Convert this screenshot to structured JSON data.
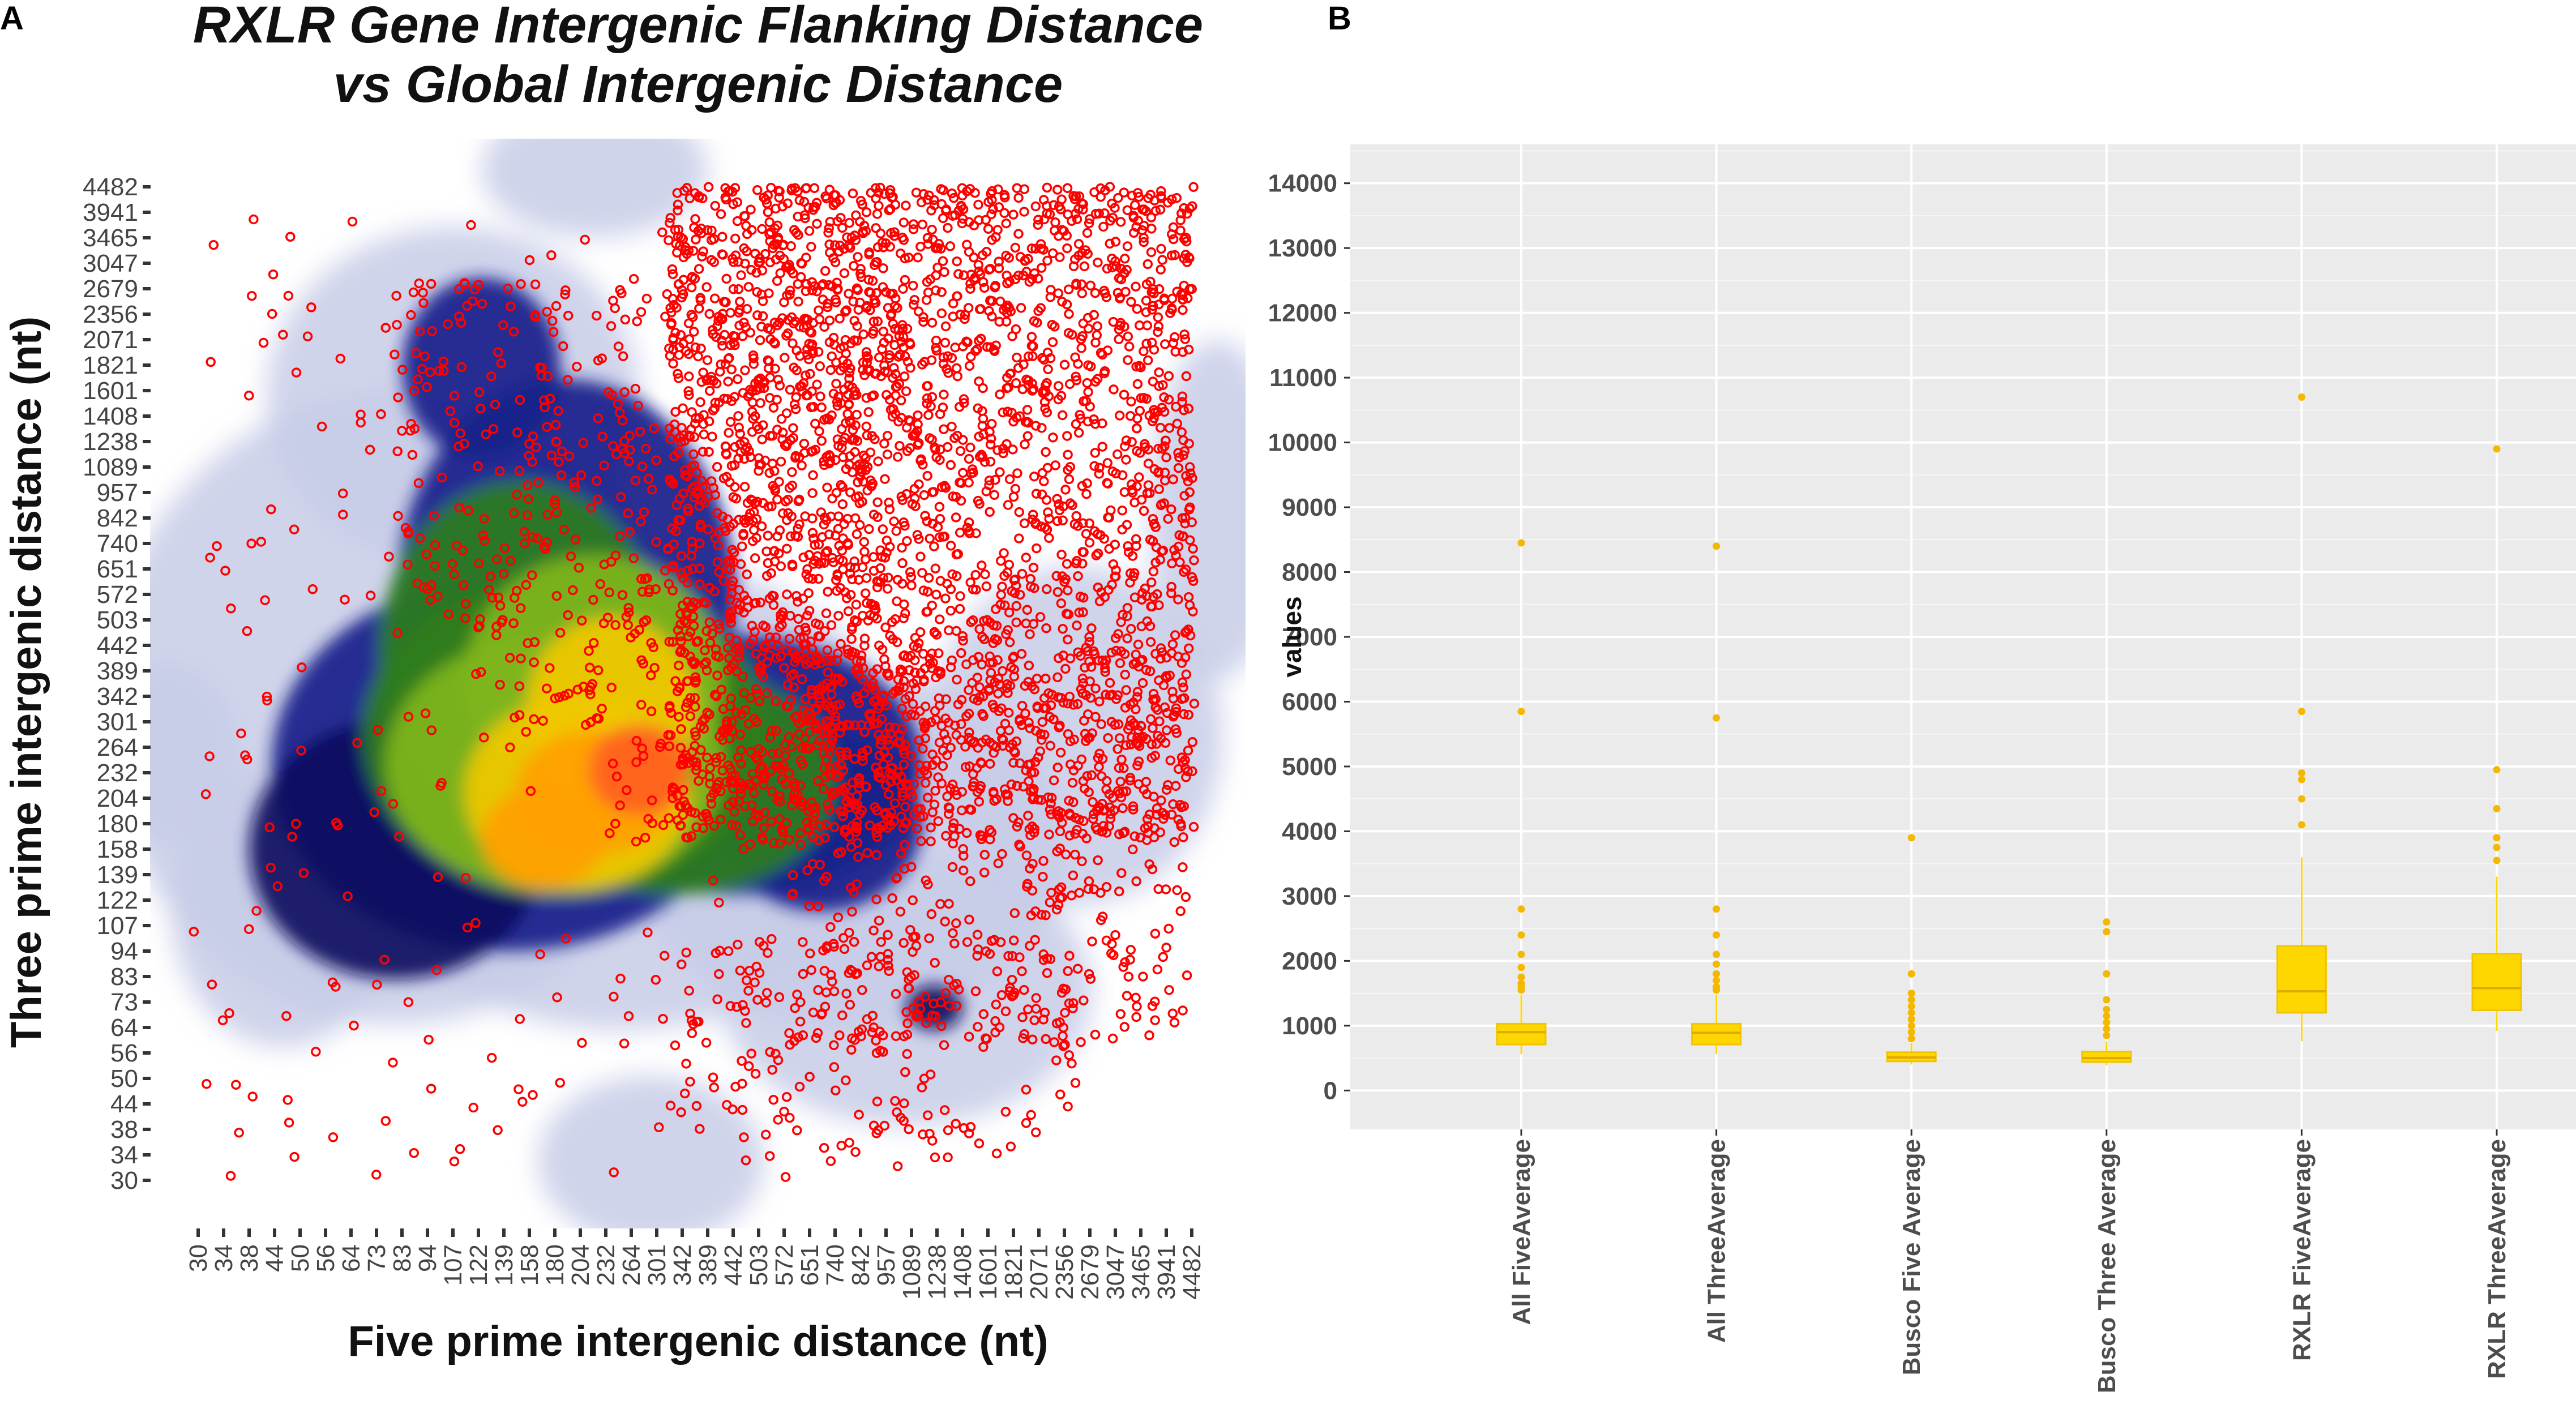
{
  "chart_data": [
    {
      "panel": "A",
      "type": "scatter",
      "title_line1": "RXLR Gene Intergenic Flanking Distance",
      "title_line2": "vs Global Intergenic Distance",
      "xlabel": "Five prime intergenic distance (nt)",
      "ylabel": "Three prime intergenic distance (nt)",
      "x_ticks": [
        "30",
        "34",
        "38",
        "44",
        "50",
        "56",
        "64",
        "73",
        "83",
        "94",
        "107",
        "122",
        "139",
        "158",
        "180",
        "204",
        "232",
        "264",
        "301",
        "342",
        "389",
        "442",
        "503",
        "572",
        "651",
        "740",
        "842",
        "957",
        "1089",
        "1238",
        "1408",
        "1601",
        "1821",
        "2071",
        "2356",
        "2679",
        "3047",
        "3465",
        "3941",
        "4482"
      ],
      "y_ticks": [
        "30",
        "34",
        "38",
        "44",
        "50",
        "56",
        "64",
        "73",
        "83",
        "94",
        "107",
        "122",
        "139",
        "158",
        "180",
        "204",
        "232",
        "264",
        "301",
        "342",
        "389",
        "442",
        "503",
        "572",
        "651",
        "740",
        "842",
        "957",
        "1089",
        "1238",
        "1408",
        "1601",
        "1821",
        "2071",
        "2356",
        "2679",
        "3047",
        "3465",
        "3941",
        "4482"
      ],
      "axis_scale": "log",
      "xlim": [
        30,
        4482
      ],
      "ylim": [
        30,
        4482
      ],
      "background": "2D density heatmap of global intergenic distances (white → blue → green → yellow → orange → red)",
      "overlay": "RXLR gene flanking distances as red open circles, concentrated in upper-right",
      "point_color": "#ff0000",
      "density_colors": [
        "#ffffff",
        "#c8cce8",
        "#1a1f8a",
        "#0d0a5e",
        "#2e7d1e",
        "#7fb51a",
        "#f0c800",
        "#ffa000",
        "#ff6020"
      ]
    },
    {
      "panel": "B",
      "type": "box",
      "ylabel": "values",
      "ylim": [
        -600,
        14600
      ],
      "y_ticks": [
        0,
        1000,
        2000,
        3000,
        4000,
        5000,
        6000,
        7000,
        8000,
        9000,
        10000,
        11000,
        12000,
        13000,
        14000
      ],
      "box_color": "#ffd700",
      "categories": [
        "All FiveAverage",
        "All ThreeAverage",
        "Busco Five Average",
        "Busco Three Average",
        "RXLR FiveAverage",
        "RXLR ThreeAverage"
      ],
      "boxes": [
        {
          "name": "All FiveAverage",
          "whisker_low": 560,
          "q1": 710,
          "median": 900,
          "q3": 1030,
          "whisker_high": 1480,
          "outliers": [
            1550,
            1600,
            1650,
            1750,
            1900,
            2100,
            2400,
            2800,
            5850,
            8450
          ]
        },
        {
          "name": "All ThreeAverage",
          "whisker_low": 560,
          "q1": 710,
          "median": 890,
          "q3": 1030,
          "whisker_high": 1480,
          "outliers": [
            1550,
            1600,
            1700,
            1800,
            1950,
            2100,
            2400,
            2800,
            5750,
            8400
          ]
        },
        {
          "name": "Busco Five Average",
          "whisker_low": 400,
          "q1": 450,
          "median": 510,
          "q3": 590,
          "whisker_high": 730,
          "outliers": [
            800,
            900,
            1000,
            1100,
            1200,
            1300,
            1400,
            1500,
            1800,
            3900
          ]
        },
        {
          "name": "Busco Three Average",
          "whisker_low": 390,
          "q1": 440,
          "median": 500,
          "q3": 600,
          "whisker_high": 760,
          "outliers": [
            850,
            950,
            1050,
            1150,
            1250,
            1400,
            1800,
            2450,
            2600
          ]
        },
        {
          "name": "RXLR FiveAverage",
          "whisker_low": 760,
          "q1": 1200,
          "median": 1530,
          "q3": 2230,
          "whisker_high": 3600,
          "outliers": [
            4100,
            4500,
            4800,
            4900,
            5850,
            10700
          ]
        },
        {
          "name": "RXLR ThreeAverage",
          "whisker_low": 920,
          "q1": 1240,
          "median": 1580,
          "q3": 2110,
          "whisker_high": 3300,
          "outliers": [
            3550,
            3750,
            3900,
            4350,
            4950,
            9900
          ]
        }
      ]
    }
  ],
  "panel_labels": {
    "a": "A",
    "b": "B"
  }
}
